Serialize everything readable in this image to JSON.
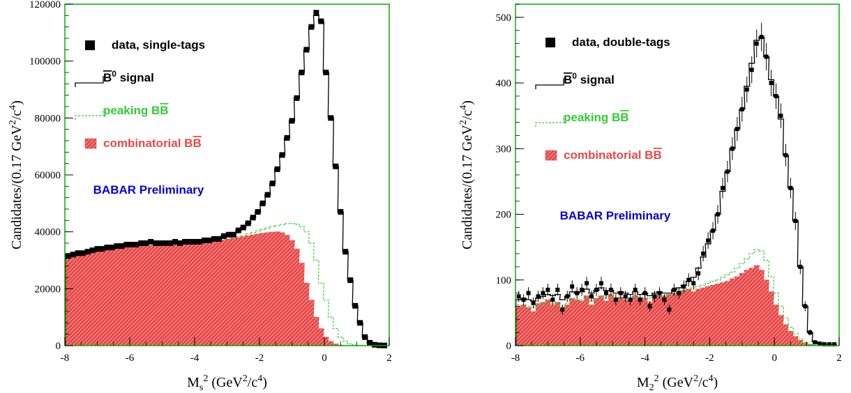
{
  "colors": {
    "frame": "#00b000",
    "data": "#000000",
    "signal": "#000000",
    "peaking": "#33cc33",
    "combinatorial_fill": "#e84848",
    "combinatorial_hatch": "#ffffff",
    "watermark": "#0000dd"
  },
  "chart_data": [
    {
      "type": "histogram",
      "xlim": [
        -8,
        2
      ],
      "ylim": [
        0,
        120000
      ],
      "bin_width": 0.17,
      "x_ticks": [
        "-8",
        "-6",
        "-4",
        "-2",
        "0",
        "2"
      ],
      "y_ticks": [
        "0",
        "20000",
        "40000",
        "60000",
        "80000",
        "100000",
        "120000"
      ],
      "xlabel_main": "M",
      "xlabel_sub": "s",
      "xlabel_tail": "2 (GeV",
      "xlabel_sup": "2",
      "xlabel_end": "/c",
      "xlabel_sup2": "4",
      "xlabel_close": ")",
      "ylabel_main": "Candidates/(0.17 GeV",
      "ylabel_sup": "2",
      "ylabel_mid": "/c",
      "ylabel_sup2": "4",
      "ylabel_close": ")",
      "legend": [
        {
          "label": "data, single-tags",
          "kind": "data"
        },
        {
          "label_pre": "B",
          "label_sup": "0",
          "label_post": " signal",
          "kind": "signal"
        },
        {
          "label_pre": "peaking B",
          "label_post": "B",
          "kind": "peaking"
        },
        {
          "label_pre": "combinatorial B",
          "label_post": "B",
          "kind": "combinatorial"
        }
      ],
      "annotation": "BABAR Preliminary",
      "series": [
        {
          "name": "data, single-tags",
          "style": "points",
          "x": [
            -7.9,
            -7.75,
            -7.6,
            -7.45,
            -7.3,
            -7.15,
            -7.0,
            -6.85,
            -6.7,
            -6.55,
            -6.4,
            -6.25,
            -6.1,
            -5.95,
            -5.8,
            -5.65,
            -5.5,
            -5.35,
            -5.2,
            -5.05,
            -4.9,
            -4.75,
            -4.6,
            -4.45,
            -4.3,
            -4.15,
            -4.0,
            -3.85,
            -3.7,
            -3.55,
            -3.4,
            -3.25,
            -3.1,
            -2.95,
            -2.8,
            -2.65,
            -2.5,
            -2.35,
            -2.2,
            -2.05,
            -1.9,
            -1.75,
            -1.6,
            -1.45,
            -1.3,
            -1.15,
            -1.0,
            -0.85,
            -0.7,
            -0.55,
            -0.4,
            -0.25,
            -0.1,
            0.05,
            0.2,
            0.35,
            0.5,
            0.65,
            0.8,
            0.95,
            1.1,
            1.25,
            1.4,
            1.55,
            1.7,
            1.85
          ],
          "y": [
            31500,
            32000,
            32500,
            32500,
            33000,
            33500,
            34000,
            34000,
            34500,
            34500,
            35000,
            35000,
            35500,
            35500,
            35500,
            36000,
            36000,
            36500,
            36000,
            36000,
            36000,
            36000,
            36500,
            36000,
            36500,
            36500,
            36500,
            36500,
            37000,
            37000,
            37500,
            37500,
            38500,
            39000,
            39000,
            40500,
            41500,
            43000,
            45000,
            47000,
            50000,
            53000,
            57000,
            62000,
            67000,
            73000,
            79000,
            87000,
            96000,
            104000,
            112000,
            117000,
            114000,
            96000,
            80000,
            63000,
            47000,
            33000,
            23000,
            14000,
            8000,
            3000,
            1000,
            300,
            100,
            50
          ]
        },
        {
          "name": "B0 signal",
          "style": "step",
          "y": [
            31500,
            32000,
            32300,
            32600,
            33000,
            33400,
            33800,
            34100,
            34400,
            34600,
            34900,
            35100,
            35300,
            35500,
            35600,
            35800,
            35900,
            36100,
            36000,
            36000,
            36100,
            36100,
            36300,
            36200,
            36400,
            36500,
            36600,
            36700,
            36900,
            37100,
            37500,
            37800,
            38500,
            39000,
            39500,
            40500,
            41500,
            43000,
            45000,
            47000,
            50000,
            53000,
            57000,
            62000,
            67000,
            73000,
            79000,
            87000,
            96000,
            104000,
            112000,
            116000,
            114000,
            96000,
            80000,
            63000,
            47000,
            33000,
            23000,
            14000,
            8000,
            3000,
            1000,
            400,
            150,
            60
          ]
        },
        {
          "name": "peaking BB",
          "style": "dashed-step",
          "y": [
            31000,
            31500,
            32000,
            32300,
            32700,
            33100,
            33400,
            33700,
            34000,
            34300,
            34500,
            34700,
            34900,
            35100,
            35200,
            35400,
            35500,
            35600,
            35600,
            35700,
            35800,
            35900,
            36000,
            36000,
            36100,
            36200,
            36300,
            36400,
            36500,
            36700,
            36900,
            37100,
            37400,
            37700,
            38000,
            38400,
            38800,
            39300,
            39800,
            40300,
            40800,
            41300,
            41800,
            42200,
            42600,
            42900,
            43000,
            42700,
            41800,
            40000,
            36000,
            30000,
            22000,
            16000,
            10000,
            6000,
            3000,
            1500,
            600,
            200,
            80,
            30,
            10,
            0,
            0,
            0
          ]
        },
        {
          "name": "combinatorial BB",
          "style": "filled-step",
          "y": [
            30500,
            31000,
            31500,
            32000,
            32300,
            32700,
            33000,
            33300,
            33600,
            33900,
            34100,
            34300,
            34500,
            34700,
            34900,
            35000,
            35100,
            35200,
            35300,
            35400,
            35500,
            35600,
            35700,
            35800,
            35900,
            36000,
            36100,
            36200,
            36300,
            36500,
            36700,
            36900,
            37100,
            37400,
            37700,
            38000,
            38300,
            38600,
            38900,
            39200,
            39500,
            39700,
            39900,
            40000,
            39700,
            38800,
            37000,
            34000,
            29000,
            22000,
            16000,
            10000,
            6000,
            3000,
            1500,
            600,
            200,
            50,
            10,
            0,
            0,
            0,
            0,
            0,
            0,
            0
          ]
        }
      ]
    },
    {
      "type": "histogram",
      "xlim": [
        -8,
        2
      ],
      "ylim": [
        0,
        520
      ],
      "bin_width": 0.17,
      "x_ticks": [
        "-8",
        "-6",
        "-4",
        "-2",
        "0",
        "2"
      ],
      "y_ticks": [
        "0",
        "100",
        "200",
        "300",
        "400",
        "500"
      ],
      "xlabel_main": "M",
      "xlabel_sub": "2",
      "xlabel_tail": "2 (GeV",
      "xlabel_sup": "2",
      "xlabel_end": "/c",
      "xlabel_sup2": "4",
      "xlabel_close": ")",
      "ylabel_main": "Candidates/(0.17 GeV",
      "ylabel_sup": "2",
      "ylabel_mid": "/c",
      "ylabel_sup2": "4",
      "ylabel_close": ")",
      "legend": [
        {
          "label": "data, double-tags",
          "kind": "data"
        },
        {
          "label_pre": "B",
          "label_sup": "0",
          "label_post": " signal",
          "kind": "signal"
        },
        {
          "label_pre": "peaking B",
          "label_post": "B",
          "kind": "peaking"
        },
        {
          "label_pre": "combinatorial B",
          "label_post": "B",
          "kind": "combinatorial"
        }
      ],
      "annotation": "BABAR Preliminary",
      "series": [
        {
          "name": "data, double-tags",
          "style": "points",
          "x": [
            -7.9,
            -7.75,
            -7.6,
            -7.45,
            -7.3,
            -7.15,
            -7.0,
            -6.85,
            -6.7,
            -6.55,
            -6.4,
            -6.25,
            -6.1,
            -5.95,
            -5.8,
            -5.65,
            -5.5,
            -5.35,
            -5.2,
            -5.05,
            -4.9,
            -4.75,
            -4.6,
            -4.45,
            -4.3,
            -4.15,
            -4.0,
            -3.85,
            -3.7,
            -3.55,
            -3.4,
            -3.25,
            -3.1,
            -2.95,
            -2.8,
            -2.65,
            -2.5,
            -2.35,
            -2.2,
            -2.05,
            -1.9,
            -1.75,
            -1.6,
            -1.45,
            -1.3,
            -1.15,
            -1.0,
            -0.85,
            -0.7,
            -0.55,
            -0.4,
            -0.25,
            -0.1,
            0.05,
            0.2,
            0.35,
            0.5,
            0.65,
            0.8,
            0.95,
            1.1,
            1.25,
            1.4,
            1.55,
            1.7,
            1.85
          ],
          "y": [
            75,
            70,
            80,
            65,
            75,
            80,
            85,
            70,
            85,
            55,
            75,
            90,
            80,
            85,
            95,
            75,
            85,
            95,
            80,
            85,
            70,
            80,
            75,
            70,
            85,
            70,
            80,
            60,
            75,
            80,
            70,
            55,
            85,
            80,
            90,
            100,
            95,
            110,
            140,
            160,
            175,
            200,
            240,
            265,
            300,
            330,
            360,
            390,
            420,
            460,
            470,
            440,
            400,
            380,
            350,
            290,
            240,
            190,
            120,
            60,
            20,
            5,
            3,
            2,
            2,
            2
          ]
        },
        {
          "name": "B0 signal",
          "style": "step",
          "y": [
            70,
            72,
            70,
            68,
            72,
            75,
            78,
            76,
            78,
            70,
            75,
            82,
            80,
            82,
            86,
            80,
            84,
            88,
            84,
            84,
            80,
            82,
            80,
            78,
            82,
            78,
            80,
            76,
            80,
            82,
            80,
            80,
            85,
            88,
            92,
            98,
            104,
            118,
            135,
            155,
            175,
            200,
            235,
            265,
            300,
            330,
            360,
            395,
            430,
            465,
            470,
            440,
            405,
            380,
            345,
            290,
            240,
            190,
            120,
            60,
            20,
            6,
            3,
            2,
            2,
            2
          ]
        },
        {
          "name": "peaking BB",
          "style": "dashed-step",
          "y": [
            62,
            62,
            60,
            58,
            62,
            64,
            66,
            64,
            66,
            60,
            64,
            70,
            68,
            70,
            72,
            68,
            72,
            75,
            72,
            72,
            70,
            72,
            72,
            70,
            74,
            72,
            74,
            72,
            74,
            76,
            76,
            78,
            80,
            82,
            84,
            86,
            88,
            90,
            92,
            95,
            98,
            100,
            104,
            108,
            112,
            118,
            125,
            132,
            140,
            146,
            144,
            130,
            105,
            80,
            60,
            42,
            28,
            18,
            10,
            5,
            2,
            0,
            0,
            0,
            0,
            0
          ]
        },
        {
          "name": "combinatorial BB",
          "style": "filled-step",
          "y": [
            60,
            62,
            58,
            52,
            64,
            66,
            70,
            62,
            66,
            55,
            62,
            72,
            70,
            68,
            76,
            62,
            72,
            76,
            68,
            78,
            70,
            74,
            70,
            68,
            76,
            70,
            72,
            66,
            74,
            76,
            76,
            78,
            80,
            82,
            84,
            86,
            82,
            86,
            88,
            90,
            92,
            94,
            96,
            98,
            102,
            105,
            110,
            115,
            118,
            122,
            115,
            100,
            82,
            62,
            46,
            32,
            22,
            14,
            8,
            4,
            2,
            0,
            0,
            0,
            0,
            0
          ]
        }
      ]
    }
  ]
}
